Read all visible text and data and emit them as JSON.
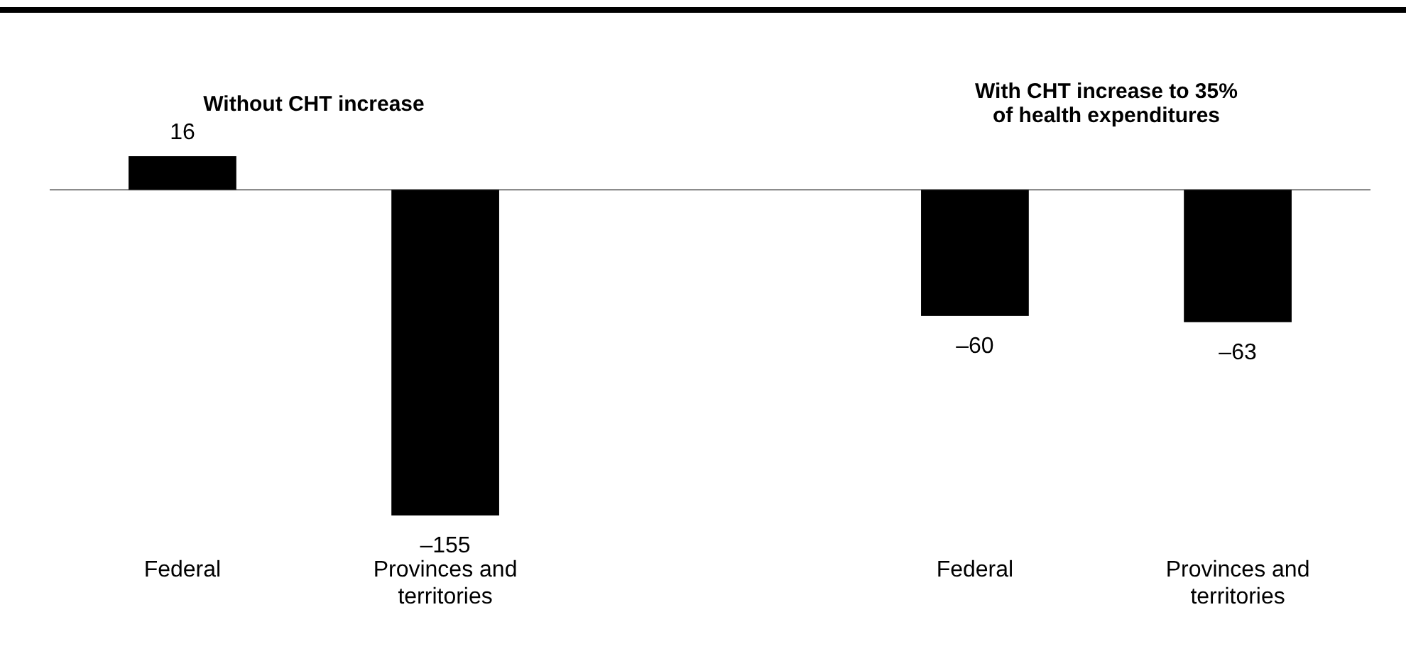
{
  "chart_data": [
    {
      "type": "bar",
      "title": "Without CHT increase",
      "categories": [
        "Federal",
        "Provinces and territories"
      ],
      "values": [
        16,
        -155
      ],
      "color": "#000000",
      "value_labels": [
        "16",
        "–155"
      ]
    },
    {
      "type": "bar",
      "title": "With CHT increase to 35% of health expenditures",
      "categories": [
        "Federal",
        "Provinces and territories"
      ],
      "values": [
        -60,
        -63
      ],
      "color": "#000000",
      "value_labels": [
        "–60",
        "–63"
      ]
    }
  ]
}
